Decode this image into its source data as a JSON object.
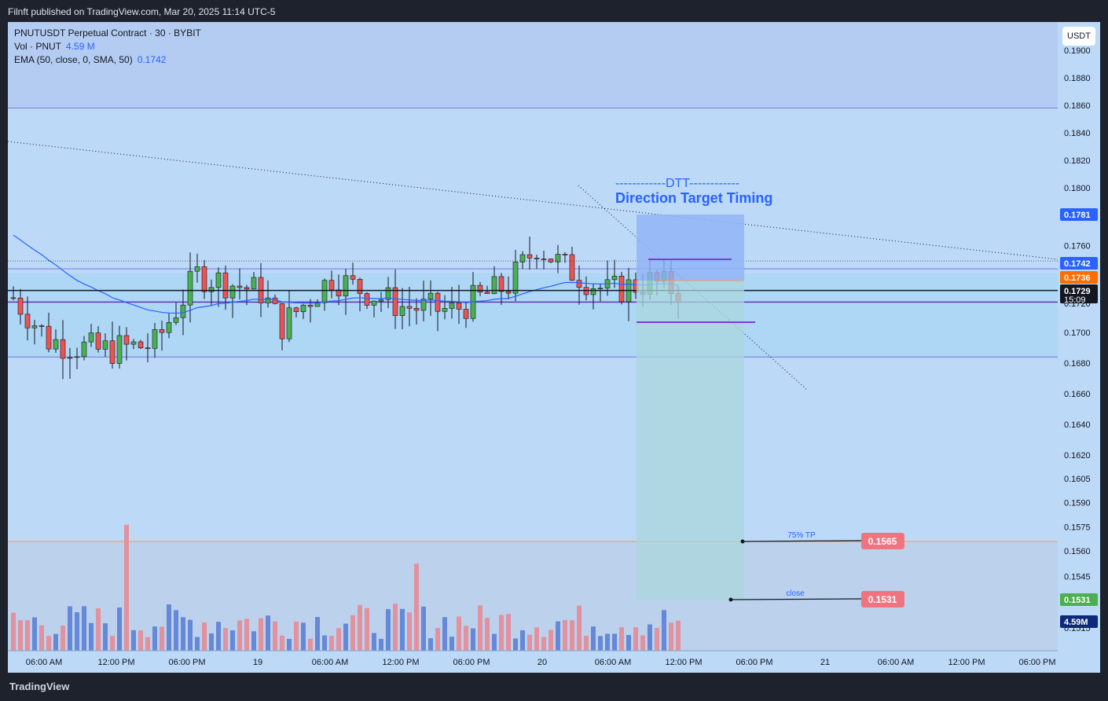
{
  "header": {
    "published": "Filnft published on TradingView.com, Mar 20, 2025 11:14 UTC-5"
  },
  "legend": {
    "line1": "PNUTUSDT Perpetual Contract · 30 · BYBIT",
    "vol_label": "Vol · PNUT",
    "vol_value": "4.59 M",
    "ema_label": "EMA (50, close, 0, SMA, 50)",
    "ema_value": "0.1742"
  },
  "currency": "USDT",
  "footer": {
    "brand": "TradingView"
  },
  "colors": {
    "up": "#4caf50",
    "down": "#ef5350",
    "bg": "#bcd9f8",
    "ema": "#2962ff"
  },
  "chart_data": {
    "type": "candlestick",
    "symbol": "PNUTUSDT",
    "interval": "30",
    "exchange": "BYBIT",
    "price_axis_labels": [
      "0.1900",
      "0.1880",
      "0.1860",
      "0.1840",
      "0.1820",
      "0.1800",
      "0.1760",
      "0.1740",
      "0.1720",
      "0.1700",
      "0.1680",
      "0.1660",
      "0.1640",
      "0.1620",
      "0.1605",
      "0.1590",
      "0.1575",
      "0.1560",
      "0.1545",
      "0.1530",
      "0.1515"
    ],
    "time_axis_labels": [
      "06:00 AM",
      "12:00 PM",
      "06:00 PM",
      "19",
      "06:00 AM",
      "12:00 PM",
      "06:00 PM",
      "20",
      "06:00 AM",
      "12:00 PM",
      "06:00 PM",
      "21",
      "06:00 AM",
      "12:00 PM",
      "06:00 PM"
    ],
    "price_badges": [
      {
        "value": "0.1781",
        "color": "#2962ff"
      },
      {
        "value": "0.1742",
        "color": "#2962ff"
      },
      {
        "value": "0.1736",
        "color": "#ff6d00"
      },
      {
        "value": "0.1729",
        "color": "#131722",
        "sub": "15:09"
      },
      {
        "value": "0.1531",
        "color": "#4caf50"
      },
      {
        "value": "4.59M",
        "color": "#0d2a7a"
      }
    ],
    "horizontal_levels": [
      0.1858,
      0.1744,
      0.1721,
      0.1684
    ],
    "candles_visible": 95,
    "candles_ohlc_sample": [
      [
        0.1724,
        0.173,
        0.1717,
        0.1727
      ],
      [
        0.1727,
        0.1735,
        0.172,
        0.1722
      ],
      [
        0.1722,
        0.1728,
        0.1712,
        0.1716
      ],
      [
        0.1716,
        0.172,
        0.169,
        0.1694
      ],
      [
        0.1694,
        0.17,
        0.1686,
        0.169
      ],
      [
        0.169,
        0.1705,
        0.1687,
        0.17
      ],
      [
        0.17,
        0.171,
        0.169,
        0.1694
      ],
      [
        0.1694,
        0.17,
        0.1678,
        0.1684
      ],
      [
        0.1684,
        0.172,
        0.167,
        0.169
      ]
    ],
    "ema": {
      "period": 50,
      "last": 0.1742
    },
    "annotations": [
      {
        "text": "------------DTT------------"
      },
      {
        "text": "Direction Target Timing"
      },
      {
        "text": "75% TP",
        "value": "0.1565"
      },
      {
        "text": "close",
        "value": "0.1531"
      }
    ],
    "volume": {
      "last": "4.59M"
    }
  }
}
